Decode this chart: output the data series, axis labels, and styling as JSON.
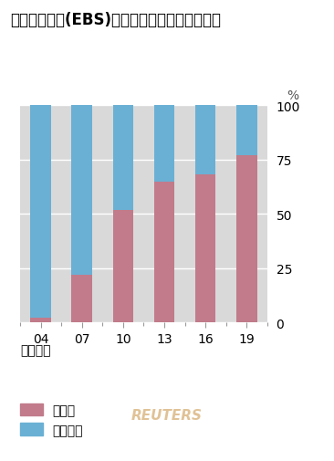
{
  "title": "电子交易系统(EBS)中运算法与人工交易的比重",
  "categories": [
    "04",
    "07",
    "10",
    "13",
    "16",
    "19"
  ],
  "algorithm": [
    2,
    22,
    52,
    65,
    68,
    77
  ],
  "human": [
    98,
    78,
    48,
    35,
    32,
    23
  ],
  "algo_color": "#c17b8a",
  "human_color": "#6ab0d4",
  "bg_color": "#d9d9d9",
  "outer_bg": "#ffffff",
  "pct_label": "%",
  "yticks": [
    0,
    25,
    50,
    75,
    100
  ],
  "legend_title": "交易类型",
  "legend_algo": "运算法",
  "legend_human": "人工交易",
  "watermark": "REUTERS",
  "watermark_color": "#d4a96a",
  "title_fontsize": 12,
  "tick_fontsize": 10,
  "legend_fontsize": 10,
  "bar_width": 0.5
}
